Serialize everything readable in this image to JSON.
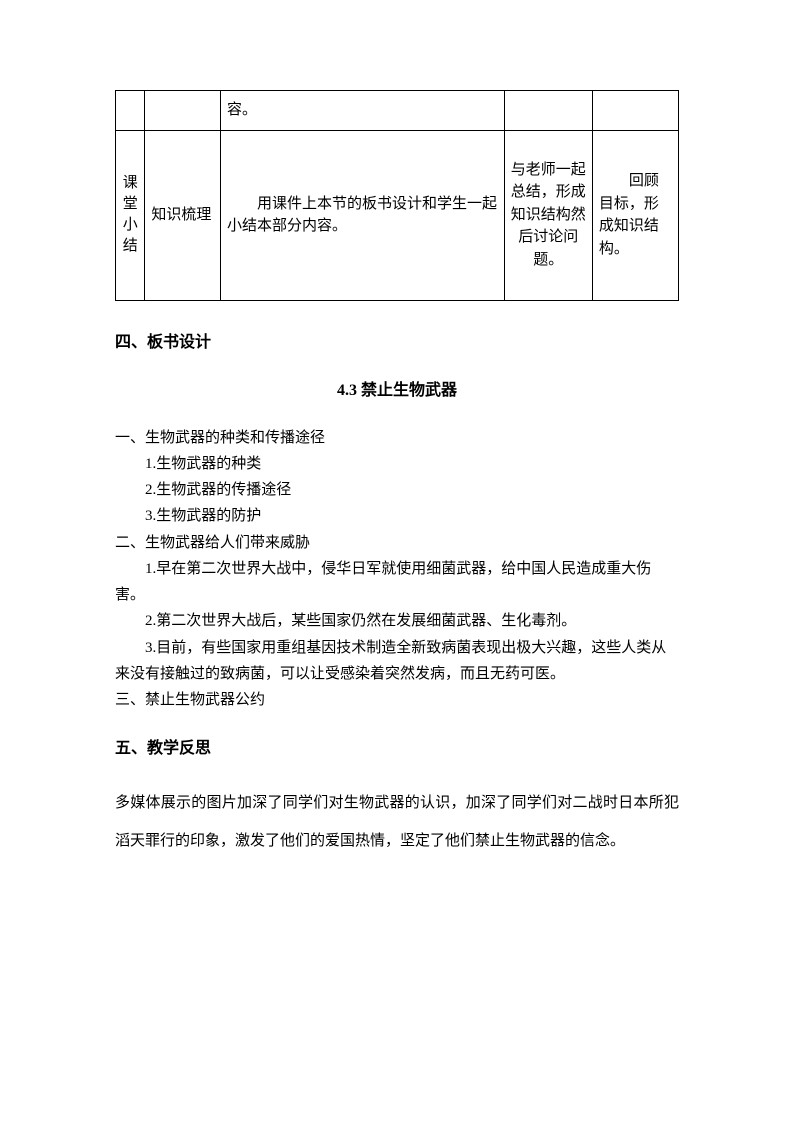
{
  "table": {
    "row0": {
      "col3": "容。"
    },
    "row1": {
      "col1": "课堂小结",
      "col2": "知识梳理",
      "col3": "用课件上本节的板书设计和学生一起小结本部分内容。",
      "col4": "与老师一起总结，形成知识结构然后讨论问题。",
      "col5": "回顾目标，形成知识结构。"
    }
  },
  "section4": {
    "heading": "四、板书设计",
    "subtitle": "4.3 禁止生物武器",
    "outline": {
      "l1": "一、生物武器的种类和传播途径",
      "l2": "1.生物武器的种类",
      "l3": "2.生物武器的传播途径",
      "l4": "3.生物武器的防护",
      "l5": "二、生物武器给人们带来威胁",
      "l6": "1.早在第二次世界大战中，侵华日军就使用细菌武器，给中国人民造成重大伤害。",
      "l7": "2.第二次世界大战后，某些国家仍然在发展细菌武器、生化毒剂。",
      "l8": "3.目前，有些国家用重组基因技术制造全新致病菌表现出极大兴趣，这些人类从来没有接触过的致病菌，可以让受感染着突然发病，而且无药可医。",
      "l9": "三、禁止生物武器公约"
    }
  },
  "section5": {
    "heading": "五、教学反思",
    "body": "多媒体展示的图片加深了同学们对生物武器的认识，加深了同学们对二战时日本所犯滔天罪行的印象，激发了他们的爱国热情，坚定了他们禁止生物武器的信念。"
  }
}
